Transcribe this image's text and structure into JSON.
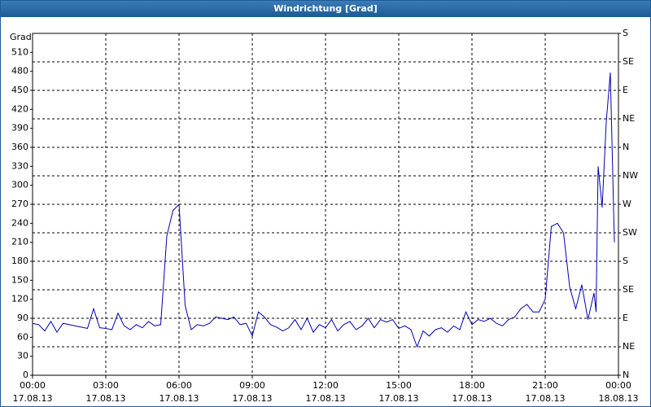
{
  "window_title": "Windrichtung [Grad]",
  "chart_data": {
    "type": "line",
    "y_label": "Grad",
    "x": [
      "2013-08-17T00:00",
      "2013-08-17T00:15",
      "2013-08-17T00:30",
      "2013-08-17T00:45",
      "2013-08-17T01:00",
      "2013-08-17T01:15",
      "2013-08-17T01:30",
      "2013-08-17T01:45",
      "2013-08-17T02:00",
      "2013-08-17T02:15",
      "2013-08-17T02:30",
      "2013-08-17T02:45",
      "2013-08-17T03:00",
      "2013-08-17T03:15",
      "2013-08-17T03:30",
      "2013-08-17T03:45",
      "2013-08-17T04:00",
      "2013-08-17T04:15",
      "2013-08-17T04:30",
      "2013-08-17T04:45",
      "2013-08-17T05:00",
      "2013-08-17T05:15",
      "2013-08-17T05:30",
      "2013-08-17T05:45",
      "2013-08-17T06:00",
      "2013-08-17T06:15",
      "2013-08-17T06:30",
      "2013-08-17T06:45",
      "2013-08-17T07:00",
      "2013-08-17T07:15",
      "2013-08-17T07:30",
      "2013-08-17T07:45",
      "2013-08-17T08:00",
      "2013-08-17T08:15",
      "2013-08-17T08:30",
      "2013-08-17T08:45",
      "2013-08-17T09:00",
      "2013-08-17T09:15",
      "2013-08-17T09:30",
      "2013-08-17T09:45",
      "2013-08-17T10:00",
      "2013-08-17T10:15",
      "2013-08-17T10:30",
      "2013-08-17T10:45",
      "2013-08-17T11:00",
      "2013-08-17T11:15",
      "2013-08-17T11:30",
      "2013-08-17T11:45",
      "2013-08-17T12:00",
      "2013-08-17T12:15",
      "2013-08-17T12:30",
      "2013-08-17T12:45",
      "2013-08-17T13:00",
      "2013-08-17T13:15",
      "2013-08-17T13:30",
      "2013-08-17T13:45",
      "2013-08-17T14:00",
      "2013-08-17T14:15",
      "2013-08-17T14:30",
      "2013-08-17T14:45",
      "2013-08-17T15:00",
      "2013-08-17T15:15",
      "2013-08-17T15:30",
      "2013-08-17T15:45",
      "2013-08-17T16:00",
      "2013-08-17T16:15",
      "2013-08-17T16:30",
      "2013-08-17T16:45",
      "2013-08-17T17:00",
      "2013-08-17T17:15",
      "2013-08-17T17:30",
      "2013-08-17T17:45",
      "2013-08-17T18:00",
      "2013-08-17T18:15",
      "2013-08-17T18:30",
      "2013-08-17T18:45",
      "2013-08-17T19:00",
      "2013-08-17T19:15",
      "2013-08-17T19:30",
      "2013-08-17T19:45",
      "2013-08-17T20:00",
      "2013-08-17T20:15",
      "2013-08-17T20:30",
      "2013-08-17T20:45",
      "2013-08-17T21:00",
      "2013-08-17T21:15",
      "2013-08-17T21:30",
      "2013-08-17T21:45",
      "2013-08-17T22:00",
      "2013-08-17T22:15",
      "2013-08-17T22:30",
      "2013-08-17T22:45",
      "2013-08-17T23:00",
      "2013-08-17T23:05",
      "2013-08-17T23:10",
      "2013-08-17T23:20",
      "2013-08-17T23:30",
      "2013-08-17T23:40",
      "2013-08-17T23:50"
    ],
    "series": [
      {
        "color": "#0000b0",
        "values": [
          82,
          80,
          70,
          85,
          68,
          82,
          80,
          78,
          76,
          74,
          105,
          75,
          74,
          72,
          98,
          78,
          72,
          80,
          75,
          85,
          78,
          80,
          220,
          260,
          270,
          110,
          72,
          80,
          78,
          82,
          92,
          90,
          88,
          92,
          80,
          82,
          62,
          100,
          92,
          80,
          76,
          70,
          75,
          88,
          72,
          90,
          68,
          80,
          75,
          88,
          70,
          80,
          85,
          72,
          78,
          90,
          75,
          88,
          84,
          88,
          74,
          78,
          72,
          45,
          70,
          62,
          72,
          75,
          68,
          78,
          72,
          100,
          80,
          88,
          85,
          90,
          82,
          78,
          88,
          92,
          105,
          112,
          100,
          100,
          120,
          235,
          240,
          225,
          140,
          105,
          143,
          88,
          130,
          100,
          330,
          265,
          400,
          478,
          210
        ]
      }
    ],
    "xlim": [
      "2013-08-17T00:00",
      "2013-08-18T00:00"
    ],
    "xticks": [
      {
        "value": "2013-08-17T00:00",
        "label": [
          "00:00",
          "17.08.13"
        ]
      },
      {
        "value": "2013-08-17T03:00",
        "label": [
          "03:00",
          "17.08.13"
        ]
      },
      {
        "value": "2013-08-17T06:00",
        "label": [
          "06:00",
          "17.08.13"
        ]
      },
      {
        "value": "2013-08-17T09:00",
        "label": [
          "09:00",
          "17.08.13"
        ]
      },
      {
        "value": "2013-08-17T12:00",
        "label": [
          "12:00",
          "17.08.13"
        ]
      },
      {
        "value": "2013-08-17T15:00",
        "label": [
          "15:00",
          "17.08.13"
        ]
      },
      {
        "value": "2013-08-17T18:00",
        "label": [
          "18:00",
          "17.08.13"
        ]
      },
      {
        "value": "2013-08-17T21:00",
        "label": [
          "21:00",
          "17.08.13"
        ]
      },
      {
        "value": "2013-08-18T00:00",
        "label": [
          "00:00",
          "18.08.13"
        ]
      }
    ],
    "ylim": [
      0,
      540
    ],
    "yticks": [
      0,
      30,
      60,
      90,
      120,
      150,
      180,
      210,
      240,
      270,
      300,
      330,
      360,
      390,
      420,
      450,
      480,
      510
    ],
    "y2lim": [
      0,
      540
    ],
    "y2ticks": [
      {
        "value": 0,
        "label": "N"
      },
      {
        "value": 45,
        "label": "NE"
      },
      {
        "value": 90,
        "label": "E"
      },
      {
        "value": 135,
        "label": "SE"
      },
      {
        "value": 180,
        "label": "S"
      },
      {
        "value": 225,
        "label": "SW"
      },
      {
        "value": 270,
        "label": "W"
      },
      {
        "value": 315,
        "label": "NW"
      },
      {
        "value": 360,
        "label": "N"
      },
      {
        "value": 405,
        "label": "NE"
      },
      {
        "value": 450,
        "label": "E"
      },
      {
        "value": 495,
        "label": "SE"
      },
      {
        "value": 540,
        "label": "S"
      }
    ],
    "grid": true
  }
}
